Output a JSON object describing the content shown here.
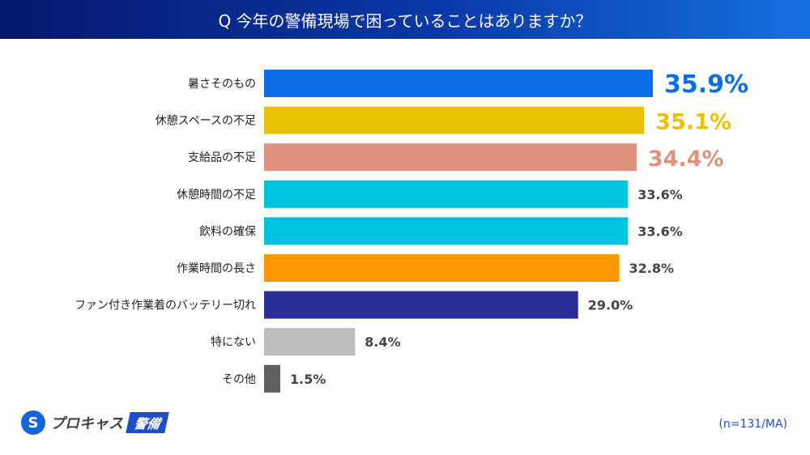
{
  "header": {
    "title": "Q 今年の警備現場で困っていることはありますか？"
  },
  "logo": {
    "name": "プロキャス",
    "badge": "警備"
  },
  "note": "(n=131/MA)",
  "chart_data": {
    "type": "bar",
    "orientation": "horizontal",
    "title": "Q 今年の警備現場で困っていることはありますか？",
    "categories": [
      "暑さそのもの",
      "休憩スペースの不足",
      "支給品の不足",
      "休憩時間の不足",
      "飲料の確保",
      "作業時間の長さ",
      "ファン付き作業着のバッテリー切れ",
      "特にない",
      "その他"
    ],
    "values": [
      35.9,
      35.1,
      34.4,
      33.6,
      33.6,
      32.8,
      29.0,
      8.4,
      1.5
    ],
    "labels": [
      "35.9%",
      "35.1%",
      "34.4%",
      "33.6%",
      "33.6%",
      "32.8%",
      "29.0%",
      "8.4%",
      "1.5%"
    ],
    "colors": [
      "#0a6ee6",
      "#e8c200",
      "#e0917d",
      "#00c2de",
      "#00c2de",
      "#ff9800",
      "#2b2e96",
      "#bdbdbd",
      "#5f5f5f"
    ],
    "highlight_top": 3,
    "grid": false,
    "unit": "%"
  }
}
